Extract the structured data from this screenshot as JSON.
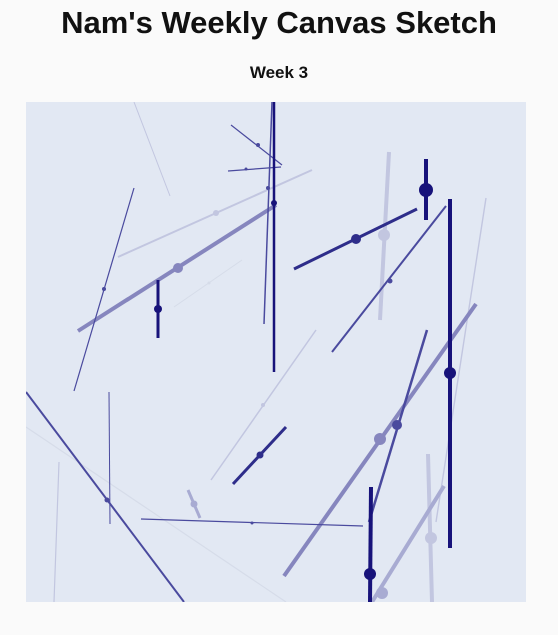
{
  "header": {
    "title": "Nam's Weekly Canvas Sketch",
    "subtitle": "Week 3"
  },
  "canvas": {
    "background": "#e2e8f3",
    "palette": {
      "light": "#c2c6e0",
      "soft": "#a8abd2",
      "mid": "#8686be",
      "blue": "#4a4a9e",
      "deep": "#2e2d8a",
      "navy": "#17127a",
      "pale": "#d6dce9"
    }
  }
}
